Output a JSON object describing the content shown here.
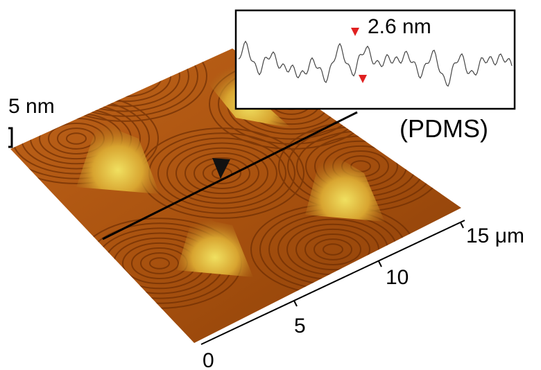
{
  "scale_bar": {
    "label": "5 nm"
  },
  "sample_label": "(PDMS)",
  "inset": {
    "annotation": "2.6 nm"
  },
  "axis": {
    "ticks": [
      "0",
      "5",
      "10",
      "15 μm"
    ]
  }
}
